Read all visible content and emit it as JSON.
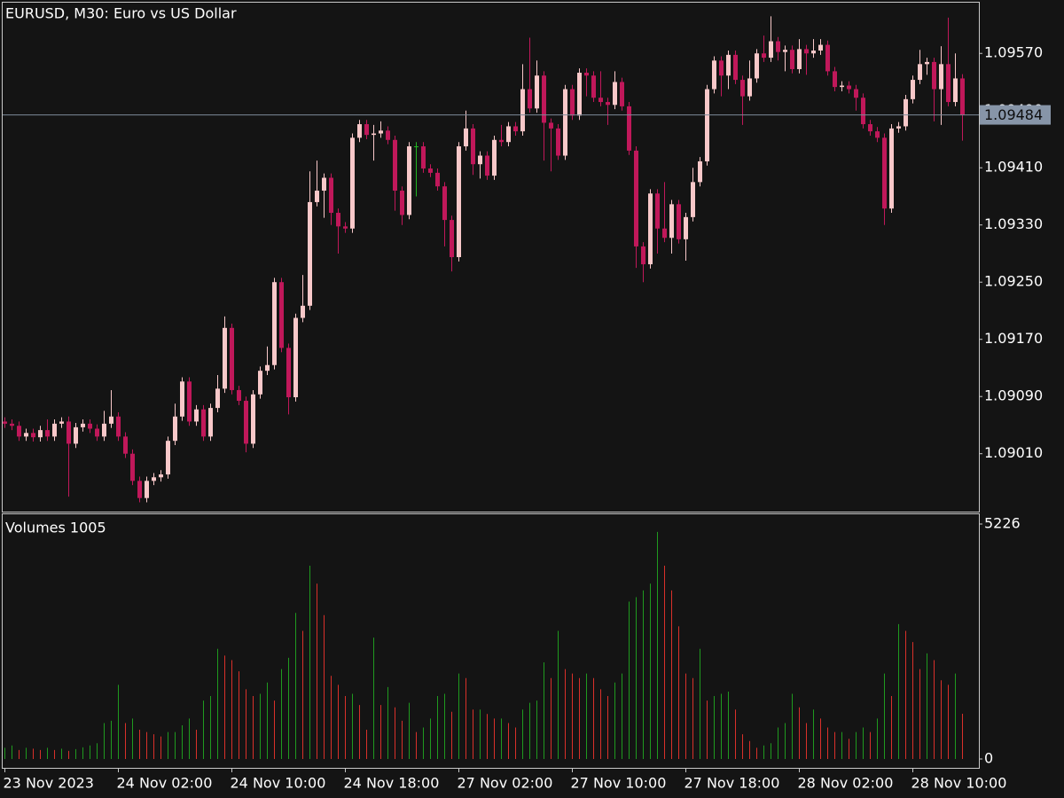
{
  "chart_data": [
    {
      "type": "candlestick",
      "title": "EURUSD, M30:  Euro vs US Dollar",
      "up_color": "#f8c8c9",
      "down_color": "#c0185a",
      "doji_color": "#22b722",
      "ylim": [
        1.08929,
        1.09641
      ],
      "yticks": [
        {
          "value": 1.0901,
          "label": "1.09010"
        },
        {
          "value": 1.0909,
          "label": "1.09090"
        },
        {
          "value": 1.0917,
          "label": "1.09170"
        },
        {
          "value": 1.0925,
          "label": "1.09250"
        },
        {
          "value": 1.0933,
          "label": "1.09330"
        },
        {
          "value": 1.0941,
          "label": "1.09410"
        },
        {
          "value": 1.0949,
          "label": "1.09490"
        },
        {
          "value": 1.0957,
          "label": "1.09570"
        }
      ],
      "last_price": 1.09484,
      "open": [
        1.09055,
        1.09052,
        1.09049,
        1.09034,
        1.09039,
        1.09033,
        1.09043,
        1.09034,
        1.09052,
        1.09055,
        1.09024,
        1.09047,
        1.09052,
        1.09045,
        1.09034,
        1.09052,
        1.09062,
        1.09034,
        1.0901,
        1.08972,
        1.08948,
        1.08972,
        1.08977,
        1.08981,
        1.09028,
        1.09062,
        1.09111,
        1.09055,
        1.09072,
        1.09034,
        1.09074,
        1.09101,
        1.09186,
        1.09099,
        1.09084,
        1.09024,
        1.09093,
        1.09126,
        1.09134,
        1.0925,
        1.09158,
        1.09089,
        1.092,
        1.09217,
        1.09362,
        1.09378,
        1.09396,
        1.09347,
        1.09328,
        1.09325,
        1.09452,
        1.09471,
        1.09456,
        1.09458,
        1.09462,
        1.09449,
        1.09378,
        1.09344,
        1.0944,
        1.0944,
        1.09409,
        1.09403,
        1.09384,
        1.09337,
        1.09285,
        1.0944,
        1.09465,
        1.09415,
        1.09427,
        1.09399,
        1.09449,
        1.09446,
        1.09468,
        1.09461,
        1.0952,
        1.09493,
        1.09539,
        1.09473,
        1.09465,
        1.09427,
        1.0952,
        1.09483,
        1.09543,
        1.09539,
        1.09508,
        1.09502,
        1.09498,
        1.0953,
        1.09496,
        1.09434,
        1.093,
        1.09275,
        1.09374,
        1.09325,
        1.09312,
        1.09359,
        1.0931,
        1.09341,
        1.0939,
        1.09419,
        1.0952,
        1.0956,
        1.09539,
        1.09568,
        1.09533,
        1.0951,
        1.09535,
        1.0957,
        1.09564,
        1.09587,
        1.09572,
        1.09575,
        1.09548,
        1.09576,
        1.0957,
        1.09574,
        1.09582,
        1.09545,
        1.09523,
        1.09525,
        1.0952,
        1.09508,
        1.09471,
        1.09461,
        1.09452,
        1.09353,
        1.09465,
        1.09468,
        1.09506,
        1.09533,
        1.09555,
        1.09558,
        1.0952,
        1.09555,
        1.09502,
        1.09535
      ],
      "high": [
        1.09061,
        1.09058,
        1.09055,
        1.09045,
        1.09045,
        1.09049,
        1.09058,
        1.09058,
        1.09061,
        1.09062,
        1.09053,
        1.09058,
        1.09058,
        1.09051,
        1.0907,
        1.09099,
        1.09068,
        1.0904,
        1.09016,
        1.08978,
        1.08978,
        1.08983,
        1.08987,
        1.09034,
        1.0908,
        1.09117,
        1.09117,
        1.09078,
        1.09078,
        1.0908,
        1.0912,
        1.09202,
        1.09192,
        1.09105,
        1.0909,
        1.09099,
        1.09132,
        1.0916,
        1.09256,
        1.09256,
        1.09164,
        1.09206,
        1.0926,
        1.09405,
        1.0942,
        1.09402,
        1.09402,
        1.09353,
        1.09334,
        1.09458,
        1.09477,
        1.09477,
        1.0947,
        1.09475,
        1.09468,
        1.09455,
        1.09384,
        1.09446,
        1.09446,
        1.09446,
        1.09415,
        1.09409,
        1.0939,
        1.09343,
        1.09446,
        1.0949,
        1.09471,
        1.09433,
        1.09433,
        1.09455,
        1.0947,
        1.09474,
        1.09474,
        1.09555,
        1.09592,
        1.0956,
        1.09545,
        1.09479,
        1.09471,
        1.09526,
        1.09526,
        1.09549,
        1.09549,
        1.09545,
        1.09545,
        1.09508,
        1.09545,
        1.09536,
        1.09502,
        1.0944,
        1.09306,
        1.0938,
        1.0938,
        1.0939,
        1.09365,
        1.09365,
        1.09347,
        1.0941,
        1.09425,
        1.09526,
        1.09566,
        1.09566,
        1.09574,
        1.09574,
        1.09539,
        1.0956,
        1.09576,
        1.09595,
        1.09622,
        1.09593,
        1.09581,
        1.09581,
        1.0959,
        1.09582,
        1.0959,
        1.0959,
        1.09588,
        1.09551,
        1.09531,
        1.09531,
        1.09526,
        1.09514,
        1.09477,
        1.09467,
        1.09458,
        1.09471,
        1.09474,
        1.09512,
        1.09539,
        1.09575,
        1.09564,
        1.09564,
        1.0958,
        1.0962,
        1.0957,
        1.09541
      ],
      "low": [
        1.09046,
        1.09043,
        1.09028,
        1.09028,
        1.09027,
        1.09027,
        1.09028,
        1.09028,
        1.09046,
        1.0895,
        1.09018,
        1.09041,
        1.09039,
        1.09028,
        1.09028,
        1.09046,
        1.09028,
        1.09004,
        1.08966,
        1.08942,
        1.08942,
        1.08966,
        1.08971,
        1.08975,
        1.09022,
        1.09056,
        1.09049,
        1.09049,
        1.09028,
        1.09028,
        1.09068,
        1.09095,
        1.09093,
        1.09078,
        1.09012,
        1.09018,
        1.09087,
        1.0912,
        1.09128,
        1.09152,
        1.09065,
        1.09083,
        1.09194,
        1.09211,
        1.09356,
        1.0934,
        1.0933,
        1.0929,
        1.09319,
        1.09319,
        1.09446,
        1.0945,
        1.0942,
        1.09452,
        1.09443,
        1.0935,
        1.0933,
        1.09338,
        1.0937,
        1.09403,
        1.09397,
        1.09378,
        1.093,
        1.09265,
        1.09279,
        1.09434,
        1.094,
        1.09395,
        1.09393,
        1.09393,
        1.0944,
        1.0944,
        1.09455,
        1.09455,
        1.09487,
        1.09487,
        1.0942,
        1.09405,
        1.09421,
        1.09421,
        1.09477,
        1.09477,
        1.0951,
        1.09502,
        1.09496,
        1.0947,
        1.09492,
        1.0949,
        1.09428,
        1.0927,
        1.0925,
        1.09269,
        1.0929,
        1.09306,
        1.0929,
        1.09304,
        1.0928,
        1.09335,
        1.09384,
        1.09413,
        1.09514,
        1.0951,
        1.0952,
        1.09527,
        1.0947,
        1.09504,
        1.09529,
        1.09558,
        1.09558,
        1.0956,
        1.09545,
        1.09542,
        1.09542,
        1.0954,
        1.09564,
        1.09568,
        1.09539,
        1.09517,
        1.09517,
        1.09514,
        1.0949,
        1.09465,
        1.09455,
        1.09446,
        1.0933,
        1.09347,
        1.09459,
        1.09462,
        1.095,
        1.09527,
        1.0954,
        1.09475,
        1.0947,
        1.09496,
        1.09496,
        1.09448
      ],
      "close": [
        1.09052,
        1.09049,
        1.09034,
        1.09039,
        1.09033,
        1.09043,
        1.09034,
        1.09052,
        1.09055,
        1.09024,
        1.09047,
        1.09052,
        1.09045,
        1.09034,
        1.09052,
        1.09062,
        1.09034,
        1.0901,
        1.08972,
        1.08948,
        1.08972,
        1.08977,
        1.08981,
        1.09028,
        1.09062,
        1.09111,
        1.09055,
        1.09072,
        1.09034,
        1.09074,
        1.09101,
        1.09186,
        1.09099,
        1.09084,
        1.09024,
        1.09093,
        1.09126,
        1.09134,
        1.0925,
        1.09158,
        1.09089,
        1.092,
        1.09217,
        1.09362,
        1.09378,
        1.09396,
        1.09347,
        1.09328,
        1.09325,
        1.09452,
        1.09471,
        1.09456,
        1.09458,
        1.09462,
        1.09449,
        1.09378,
        1.09344,
        1.0944,
        1.0944,
        1.09409,
        1.09403,
        1.09384,
        1.09337,
        1.09285,
        1.0944,
        1.09465,
        1.09415,
        1.09427,
        1.09399,
        1.09449,
        1.09446,
        1.09468,
        1.09461,
        1.0952,
        1.09493,
        1.09539,
        1.09473,
        1.09465,
        1.09427,
        1.0952,
        1.09483,
        1.09543,
        1.09539,
        1.09508,
        1.09502,
        1.09498,
        1.0953,
        1.09496,
        1.09434,
        1.093,
        1.09275,
        1.09374,
        1.09325,
        1.09312,
        1.09359,
        1.0931,
        1.09341,
        1.0939,
        1.09419,
        1.0952,
        1.0956,
        1.09539,
        1.09568,
        1.09533,
        1.0951,
        1.09535,
        1.0957,
        1.09564,
        1.09587,
        1.09572,
        1.09575,
        1.09548,
        1.09576,
        1.0957,
        1.09574,
        1.09582,
        1.09545,
        1.09523,
        1.09525,
        1.0952,
        1.09508,
        1.09471,
        1.09461,
        1.09452,
        1.09353,
        1.09465,
        1.09468,
        1.09506,
        1.09533,
        1.09555,
        1.09558,
        1.0952,
        1.09555,
        1.09502,
        1.09535,
        1.09484
      ]
    },
    {
      "type": "bar",
      "title": "Volumes 1005",
      "up_color": "#1f9a1f",
      "down_color": "#d9302a",
      "ylim": [
        -197,
        5443
      ],
      "yticks": [
        0,
        5226
      ],
      "categories": [
        "23 Nov 2023",
        null,
        null,
        null,
        null,
        null,
        null,
        null,
        null,
        null,
        null,
        null,
        null,
        null,
        null,
        null,
        "24 Nov 02:00",
        null,
        null,
        null,
        null,
        null,
        null,
        null,
        null,
        null,
        null,
        null,
        null,
        null,
        null,
        null,
        "24 Nov 10:00",
        null,
        null,
        null,
        null,
        null,
        null,
        null,
        null,
        null,
        null,
        null,
        null,
        null,
        null,
        null,
        "24 Nov 18:00",
        null,
        null,
        null,
        null,
        null,
        null,
        null,
        null,
        null,
        null,
        null,
        null,
        null,
        null,
        null,
        "27 Nov 02:00",
        null,
        null,
        null,
        null,
        null,
        null,
        null,
        null,
        null,
        null,
        null,
        null,
        null,
        null,
        null,
        "27 Nov 10:00",
        null,
        null,
        null,
        null,
        null,
        null,
        null,
        null,
        null,
        null,
        null,
        null,
        null,
        null,
        null,
        "27 Nov 18:00",
        null,
        null,
        null,
        null,
        null,
        null,
        null,
        null,
        null,
        null,
        null,
        null,
        null,
        null,
        null,
        "28 Nov 02:00",
        null,
        null,
        null,
        null,
        null,
        null,
        null,
        null,
        null,
        null,
        null,
        null,
        null,
        null,
        null,
        "28 Nov 10:00",
        null,
        null,
        null,
        null,
        null,
        null,
        null
      ],
      "values": [
        250,
        300,
        200,
        250,
        230,
        200,
        250,
        200,
        230,
        180,
        220,
        260,
        300,
        350,
        800,
        850,
        1650,
        800,
        900,
        650,
        600,
        550,
        500,
        600,
        600,
        750,
        900,
        650,
        1300,
        1400,
        2450,
        2300,
        2200,
        1950,
        1550,
        1400,
        1450,
        1700,
        1300,
        2000,
        2250,
        3250,
        2850,
        4300,
        3900,
        3200,
        1850,
        1650,
        1400,
        1450,
        1200,
        650,
        2700,
        1200,
        1600,
        1150,
        850,
        1250,
        600,
        700,
        900,
        1400,
        1450,
        1050,
        1900,
        1800,
        1100,
        1100,
        1000,
        900,
        900,
        800,
        700,
        1100,
        1250,
        1300,
        2150,
        1800,
        2850,
        2000,
        1900,
        1800,
        1900,
        1800,
        1550,
        1400,
        1700,
        1900,
        3500,
        3600,
        3750,
        3900,
        5050,
        4300,
        3750,
        2950,
        1900,
        1800,
        2450,
        1300,
        1400,
        1450,
        1500,
        1100,
        550,
        400,
        250,
        300,
        350,
        700,
        800,
        1450,
        1150,
        800,
        1100,
        900,
        700,
        600,
        600,
        450,
        600,
        700,
        600,
        900,
        1900,
        1400,
        3000,
        2850,
        2600,
        2000,
        2350,
        2200,
        1750,
        1650,
        1900,
        1005
      ]
    }
  ]
}
